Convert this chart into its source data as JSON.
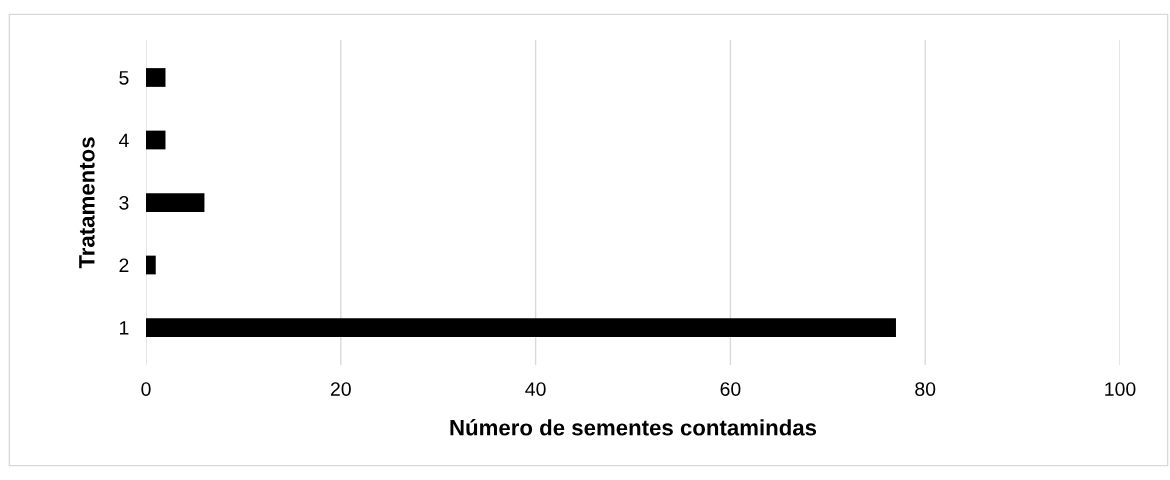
{
  "chart_data": {
    "type": "bar",
    "orientation": "horizontal",
    "xlabel": "Número de sementes contamindas",
    "ylabel": "Tratamentos",
    "categories": [
      "5",
      "4",
      "3",
      "2",
      "1"
    ],
    "values": [
      2,
      2,
      6,
      1,
      77
    ],
    "color": "#000000",
    "xlim": [
      0,
      100
    ],
    "xticks": [
      0,
      20,
      40,
      60,
      80,
      100
    ],
    "grid": "x"
  }
}
